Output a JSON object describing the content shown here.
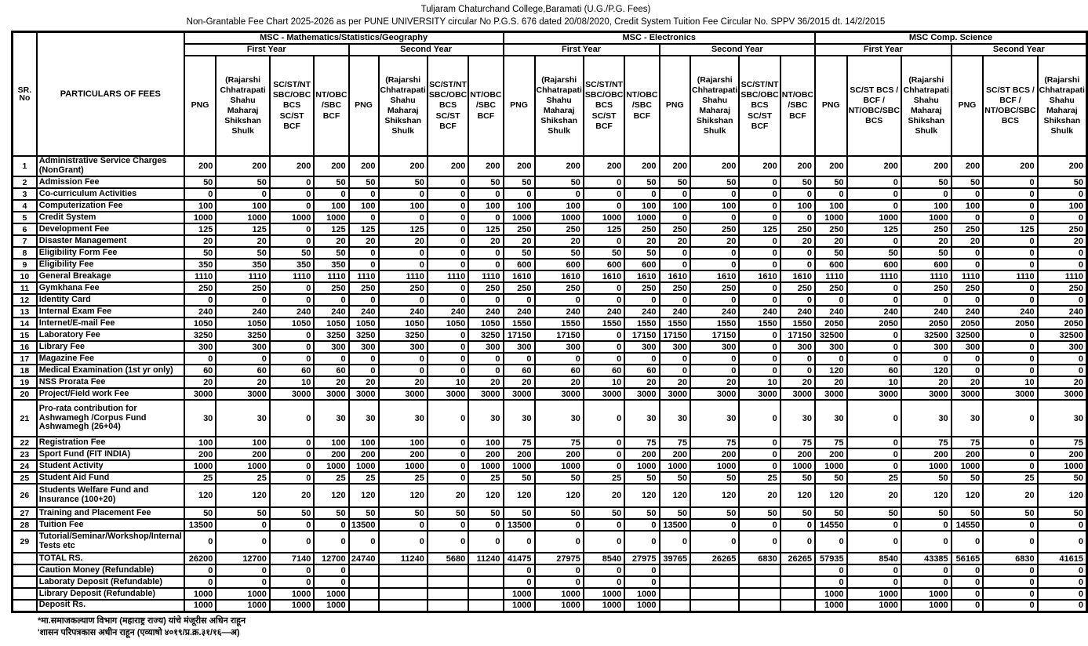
{
  "titles": {
    "line1": "Tuljaram Chaturchand College,Baramati (U.G./P.G. Fees)",
    "line2": "Non-Grantable Fee Chart 2025-2026 as per PUNE UNIVERSITY circular No  P.G.S. 676 dated 20/08/2020, Credit System Tuition Fee Circular No. SPPV 36/2015 dt. 14/2/2015"
  },
  "table": {
    "sr_header": "SR. No",
    "particulars_header": "PARTICULARS  OF FEES",
    "groups": [
      {
        "label": "MSC - Mathematics/Statistics/Geography",
        "years": [
          {
            "label": "First Year",
            "cols": [
              "PNG",
              "(Rajarshi Chhatrapati Shahu Maharaj Shikshan Shulk",
              "SC/ST/NT SBC/OBC BCS  SC/ST BCF",
              "NT/OBC /SBC BCF"
            ]
          },
          {
            "label": "Second Year",
            "cols": [
              "PNG",
              "(Rajarshi Chhatrapati Shahu Maharaj Shikshan Shulk",
              "SC/ST/NT SBC/OBC BCS SC/ST BCF",
              "NT/OBC /SBC BCF"
            ]
          }
        ]
      },
      {
        "label": "MSC - Electronics",
        "years": [
          {
            "label": "First Year",
            "cols": [
              "PNG",
              "(Rajarshi Chhatrapati Shahu Maharaj Shikshan Shulk",
              "SC/ST/NT SBC/OBC BCS SC/ST BCF",
              "NT/OBC /SBC BCF"
            ]
          },
          {
            "label": "Second Year",
            "cols": [
              "PNG",
              "(Rajarshi Chhatrapati Shahu Maharaj Shikshan Shulk",
              "SC/ST/NT SBC/OBC BCS SC/ST BCF",
              "NT/OBC /SBC BCF"
            ]
          }
        ]
      },
      {
        "label": "MSC Comp. Science",
        "years": [
          {
            "label": "First Year",
            "cols": [
              "PNG",
              "SC/ST BCS / BCF / NT/OBC/SBC BCS",
              "(Rajarshi Chhatrapati Shahu Maharaj Shikshan Shulk"
            ]
          },
          {
            "label": "Second Year",
            "cols": [
              "PNG",
              "SC/ST BCS / BCF / NT/OBC/SBC BCS",
              "(Rajarshi Chhatrapati Shahu Maharaj Shikshan Shulk"
            ]
          }
        ]
      }
    ],
    "rows": [
      {
        "sr": "1",
        "label": "Administrative Service Charges (NonGrant)",
        "values": [
          200,
          200,
          200,
          200,
          200,
          200,
          200,
          200,
          200,
          200,
          200,
          200,
          200,
          200,
          200,
          200,
          200,
          200,
          200,
          200,
          200,
          200
        ]
      },
      {
        "sr": "2",
        "label": "Admission Fee",
        "values": [
          50,
          50,
          0,
          50,
          50,
          50,
          0,
          50,
          50,
          50,
          0,
          50,
          50,
          50,
          0,
          50,
          50,
          0,
          50,
          50,
          0,
          50
        ]
      },
      {
        "sr": "3",
        "label": "Co-curriculum Activities",
        "values": [
          0,
          0,
          0,
          0,
          0,
          0,
          0,
          0,
          0,
          0,
          0,
          0,
          0,
          0,
          0,
          0,
          0,
          0,
          0,
          0,
          0,
          0
        ]
      },
      {
        "sr": "4",
        "label": "Computerization Fee",
        "values": [
          100,
          100,
          0,
          100,
          100,
          100,
          0,
          100,
          100,
          100,
          0,
          100,
          100,
          100,
          0,
          100,
          100,
          0,
          100,
          100,
          0,
          100
        ]
      },
      {
        "sr": "5",
        "label": "Credit System",
        "values": [
          1000,
          1000,
          1000,
          1000,
          0,
          0,
          0,
          0,
          1000,
          1000,
          1000,
          1000,
          0,
          0,
          0,
          0,
          1000,
          1000,
          1000,
          0,
          0,
          0
        ]
      },
      {
        "sr": "6",
        "label": "Development Fee",
        "values": [
          125,
          125,
          0,
          125,
          125,
          125,
          0,
          125,
          250,
          250,
          125,
          250,
          250,
          250,
          125,
          250,
          250,
          125,
          250,
          250,
          125,
          250
        ]
      },
      {
        "sr": "7",
        "label": "Disaster Management",
        "values": [
          20,
          20,
          0,
          20,
          20,
          20,
          0,
          20,
          20,
          20,
          0,
          20,
          20,
          20,
          0,
          20,
          20,
          0,
          20,
          20,
          0,
          20
        ]
      },
      {
        "sr": "8",
        "label": "Eligibility  Form  Fee",
        "values": [
          50,
          50,
          50,
          50,
          0,
          0,
          0,
          0,
          50,
          50,
          50,
          50,
          0,
          0,
          0,
          0,
          50,
          50,
          50,
          0,
          0,
          0
        ]
      },
      {
        "sr": "9",
        "label": "Eligibility Fee",
        "values": [
          350,
          350,
          350,
          350,
          0,
          0,
          0,
          0,
          600,
          600,
          600,
          600,
          0,
          0,
          0,
          0,
          600,
          600,
          600,
          0,
          0,
          0
        ]
      },
      {
        "sr": "10",
        "label": "General Breakage",
        "values": [
          1110,
          1110,
          1110,
          1110,
          1110,
          1110,
          1110,
          1110,
          1610,
          1610,
          1610,
          1610,
          1610,
          1610,
          1610,
          1610,
          1110,
          1110,
          1110,
          1110,
          1110,
          1110
        ]
      },
      {
        "sr": "11",
        "label": "Gymkhana Fee",
        "values": [
          250,
          250,
          0,
          250,
          250,
          250,
          0,
          250,
          250,
          250,
          0,
          250,
          250,
          250,
          0,
          250,
          250,
          0,
          250,
          250,
          0,
          250
        ]
      },
      {
        "sr": "12",
        "label": "Identity Card",
        "values": [
          0,
          0,
          0,
          0,
          0,
          0,
          0,
          0,
          0,
          0,
          0,
          0,
          0,
          0,
          0,
          0,
          0,
          0,
          0,
          0,
          0,
          0
        ]
      },
      {
        "sr": "13",
        "label": "Internal Exam Fee",
        "values": [
          240,
          240,
          240,
          240,
          240,
          240,
          240,
          240,
          240,
          240,
          240,
          240,
          240,
          240,
          240,
          240,
          240,
          240,
          240,
          240,
          240,
          240
        ]
      },
      {
        "sr": "14",
        "label": "Internet/E-mail Fee",
        "values": [
          1050,
          1050,
          1050,
          1050,
          1050,
          1050,
          1050,
          1050,
          1550,
          1550,
          1550,
          1550,
          1550,
          1550,
          1550,
          1550,
          2050,
          2050,
          2050,
          2050,
          2050,
          2050
        ]
      },
      {
        "sr": "15",
        "label": "Laboratory Fee",
        "values": [
          3250,
          3250,
          0,
          3250,
          3250,
          3250,
          0,
          3250,
          17150,
          17150,
          0,
          17150,
          17150,
          17150,
          0,
          17150,
          32500,
          0,
          32500,
          32500,
          0,
          32500
        ]
      },
      {
        "sr": "16",
        "label": "Library Fee",
        "values": [
          300,
          300,
          0,
          300,
          300,
          300,
          0,
          300,
          300,
          300,
          0,
          300,
          300,
          300,
          0,
          300,
          300,
          0,
          300,
          300,
          0,
          300
        ]
      },
      {
        "sr": "17",
        "label": "Magazine Fee",
        "values": [
          0,
          0,
          0,
          0,
          0,
          0,
          0,
          0,
          0,
          0,
          0,
          0,
          0,
          0,
          0,
          0,
          0,
          0,
          0,
          0,
          0,
          0
        ]
      },
      {
        "sr": "18",
        "label": "Medical Examination (1st yr only)",
        "values": [
          60,
          60,
          60,
          60,
          0,
          0,
          0,
          0,
          60,
          60,
          60,
          60,
          0,
          0,
          0,
          0,
          120,
          60,
          120,
          0,
          0,
          0
        ]
      },
      {
        "sr": "19",
        "label": "NSS Prorata Fee",
        "values": [
          20,
          20,
          10,
          20,
          20,
          20,
          10,
          20,
          20,
          20,
          10,
          20,
          20,
          20,
          10,
          20,
          20,
          10,
          20,
          20,
          10,
          20
        ]
      },
      {
        "sr": "20",
        "label": "Project/Field work Fee",
        "values": [
          3000,
          3000,
          3000,
          3000,
          3000,
          3000,
          3000,
          3000,
          3000,
          3000,
          3000,
          3000,
          3000,
          3000,
          3000,
          3000,
          3000,
          3000,
          3000,
          3000,
          3000,
          3000
        ]
      },
      {
        "sr": "21",
        "label": "Pro-rata contribution for Ashwamegh /Corpus Fund Ashwamegh  (26+04)",
        "values": [
          30,
          30,
          0,
          30,
          30,
          30,
          0,
          30,
          30,
          30,
          0,
          30,
          30,
          30,
          0,
          30,
          30,
          0,
          30,
          30,
          0,
          30
        ]
      },
      {
        "sr": "22",
        "label": "Registration Fee",
        "values": [
          100,
          100,
          0,
          100,
          100,
          100,
          0,
          100,
          75,
          75,
          0,
          75,
          75,
          75,
          0,
          75,
          75,
          0,
          75,
          75,
          0,
          75
        ]
      },
      {
        "sr": "23",
        "label": "Sport Fund (FIT INDIA)",
        "values": [
          200,
          200,
          0,
          200,
          200,
          200,
          0,
          200,
          200,
          200,
          0,
          200,
          200,
          200,
          0,
          200,
          200,
          0,
          200,
          200,
          0,
          200
        ]
      },
      {
        "sr": "24",
        "label": "Student Activity",
        "values": [
          1000,
          1000,
          0,
          1000,
          1000,
          1000,
          0,
          1000,
          1000,
          1000,
          0,
          1000,
          1000,
          1000,
          0,
          1000,
          1000,
          0,
          1000,
          1000,
          0,
          1000
        ]
      },
      {
        "sr": "25",
        "label": "Student Aid Fund",
        "values": [
          25,
          25,
          0,
          25,
          25,
          25,
          0,
          25,
          50,
          50,
          25,
          50,
          50,
          50,
          25,
          50,
          50,
          25,
          50,
          50,
          25,
          50
        ]
      },
      {
        "sr": "26",
        "label": "Students Welfare Fund   and Insurance (100+20)",
        "values": [
          120,
          120,
          20,
          120,
          120,
          120,
          20,
          120,
          120,
          120,
          20,
          120,
          120,
          120,
          20,
          120,
          120,
          20,
          120,
          120,
          20,
          120
        ]
      },
      {
        "sr": "27",
        "label": "Training and Placement Fee",
        "values": [
          50,
          50,
          50,
          50,
          50,
          50,
          50,
          50,
          50,
          50,
          50,
          50,
          50,
          50,
          50,
          50,
          50,
          50,
          50,
          50,
          50,
          50
        ]
      },
      {
        "sr": "28",
        "label": "Tuition Fee",
        "values": [
          13500,
          0,
          0,
          0,
          13500,
          0,
          0,
          0,
          13500,
          0,
          0,
          0,
          13500,
          0,
          0,
          0,
          14550,
          0,
          0,
          14550,
          0,
          0
        ]
      },
      {
        "sr": "29",
        "label": "Tutorial/Seminar/Workshop/Internal Tests etc",
        "values": [
          0,
          0,
          0,
          0,
          0,
          0,
          0,
          0,
          0,
          0,
          0,
          0,
          0,
          0,
          0,
          0,
          0,
          0,
          0,
          0,
          0,
          0
        ]
      },
      {
        "sr": "",
        "label": "TOTAL RS.",
        "values": [
          26200,
          12700,
          7140,
          12700,
          24740,
          11240,
          5680,
          11240,
          41475,
          27975,
          8540,
          27975,
          39765,
          26265,
          6830,
          26265,
          57935,
          8540,
          43385,
          56165,
          6830,
          41615
        ]
      },
      {
        "sr": "",
        "label": "Caution Money  (Refundable)",
        "values": [
          0,
          0,
          0,
          0,
          "",
          "",
          "",
          "",
          0,
          0,
          0,
          0,
          "",
          "",
          "",
          "",
          0,
          0,
          0,
          0,
          0,
          0
        ]
      },
      {
        "sr": "",
        "label": "Laboraty Deposit  (Refundable)",
        "values": [
          0,
          0,
          0,
          0,
          "",
          "",
          "",
          "",
          0,
          0,
          0,
          0,
          "",
          "",
          "",
          "",
          0,
          0,
          0,
          0,
          0,
          0
        ]
      },
      {
        "sr": "",
        "label": "Library Deposit (Refundable)",
        "values": [
          1000,
          1000,
          1000,
          1000,
          "",
          "",
          "",
          "",
          1000,
          1000,
          1000,
          1000,
          "",
          "",
          "",
          "",
          1000,
          1000,
          1000,
          0,
          0,
          0
        ]
      },
      {
        "sr": "",
        "label": "Deposit Rs.",
        "values": [
          1000,
          1000,
          1000,
          1000,
          "",
          "",
          "",
          "",
          1000,
          1000,
          1000,
          1000,
          "",
          "",
          "",
          "",
          1000,
          1000,
          1000,
          0,
          0,
          0
        ]
      }
    ]
  },
  "footnotes": [
    "*मा.समाजकल्याण विभाग (महाराष्ट्र राज्य) यांचे मंजूरीस अधिन राहून",
    "'शासन परिपत्रकास अधीन राहून (एव्याषो ४०१९/प्र.क्र.३१/१६—अ)"
  ]
}
